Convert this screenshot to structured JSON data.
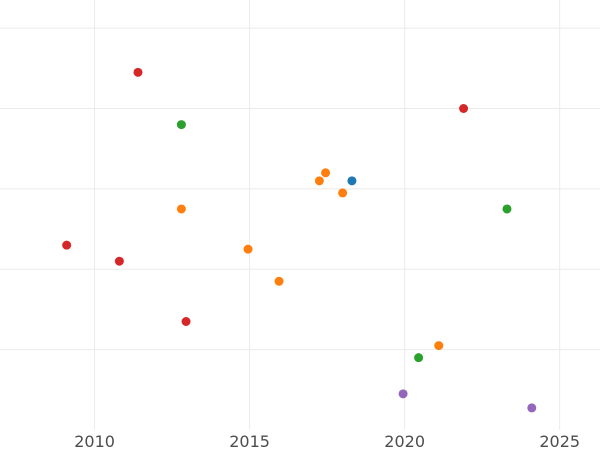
{
  "chart_data": {
    "type": "scatter",
    "title": "",
    "xlabel": "",
    "ylabel": "",
    "xlim": [
      2006.95,
      2026.3
    ],
    "ylim": [
      0,
      10.7
    ],
    "grid": true,
    "legend": "none",
    "x_ticks": [
      2010,
      2015,
      2020,
      2025
    ],
    "x_tick_labels": [
      "2010",
      "2015",
      "2020",
      "2025"
    ],
    "y_gridlines": [
      2,
      4,
      6,
      8,
      10
    ],
    "series": [
      {
        "color": "#1f77b4",
        "points": [
          {
            "x": 2018.3,
            "y": 6.2
          }
        ]
      },
      {
        "color": "#ff7f0e",
        "points": [
          {
            "x": 2012.8,
            "y": 5.5
          },
          {
            "x": 2014.95,
            "y": 4.5
          },
          {
            "x": 2015.95,
            "y": 3.7
          },
          {
            "x": 2017.25,
            "y": 6.2
          },
          {
            "x": 2017.45,
            "y": 6.4
          },
          {
            "x": 2018.0,
            "y": 5.9
          },
          {
            "x": 2021.1,
            "y": 2.1
          }
        ]
      },
      {
        "color": "#2ca02c",
        "points": [
          {
            "x": 2012.8,
            "y": 7.6
          },
          {
            "x": 2020.45,
            "y": 1.8
          },
          {
            "x": 2023.3,
            "y": 5.5
          }
        ]
      },
      {
        "color": "#d62728",
        "points": [
          {
            "x": 2009.1,
            "y": 4.6
          },
          {
            "x": 2010.8,
            "y": 4.2
          },
          {
            "x": 2011.4,
            "y": 8.9
          },
          {
            "x": 2012.95,
            "y": 2.7
          },
          {
            "x": 2021.9,
            "y": 8.0
          }
        ]
      },
      {
        "color": "#9467bd",
        "points": [
          {
            "x": 2019.95,
            "y": 0.9
          },
          {
            "x": 2024.1,
            "y": 0.55
          }
        ]
      }
    ]
  }
}
